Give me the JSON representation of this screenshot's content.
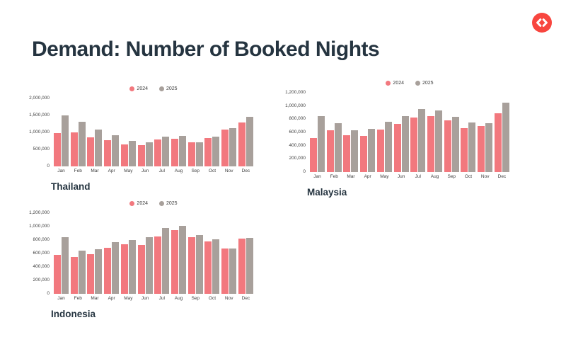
{
  "page": {
    "title": "Demand: Number of Booked Nights"
  },
  "logo": {
    "icon": "code-brackets-icon",
    "background_color": "#f8463f",
    "glyph_color": "#ffffff"
  },
  "colors": {
    "series_2024": "#f2787e",
    "series_2025": "#a8a09b",
    "heading": "#253440",
    "axis_text": "#3d3d3d"
  },
  "chart_data": [
    {
      "type": "bar",
      "title": "Thailand",
      "legend_position": "top",
      "grid": false,
      "categories": [
        "Jan",
        "Feb",
        "Mar",
        "Apr",
        "May",
        "Jun",
        "Jul",
        "Aug",
        "Sep",
        "Oct",
        "Nov",
        "Dec"
      ],
      "series": [
        {
          "name": "2024",
          "color": "#f2787e",
          "values": [
            980000,
            1000000,
            850000,
            780000,
            640000,
            620000,
            800000,
            820000,
            700000,
            830000,
            1080000,
            1300000
          ]
        },
        {
          "name": "2025",
          "color": "#a8a09b",
          "values": [
            1500000,
            1310000,
            1080000,
            920000,
            740000,
            700000,
            880000,
            890000,
            715000,
            870000,
            1130000,
            1460000
          ]
        }
      ],
      "ylim": [
        0,
        2000000
      ],
      "yticks": [
        0,
        500000,
        1000000,
        1500000,
        2000000
      ],
      "ytick_labels": [
        "0",
        "500,000",
        "1,000,000",
        "1,500,000",
        "2,000,000"
      ]
    },
    {
      "type": "bar",
      "title": "Malaysia",
      "legend_position": "top",
      "grid": false,
      "categories": [
        "Jan",
        "Feb",
        "Mar",
        "Apr",
        "May",
        "Jun",
        "Jul",
        "Aug",
        "Sep",
        "Oct",
        "Nov",
        "Dec"
      ],
      "series": [
        {
          "name": "2024",
          "color": "#f2787e",
          "values": [
            510000,
            635000,
            560000,
            550000,
            645000,
            730000,
            820000,
            845000,
            780000,
            660000,
            700000,
            890000
          ]
        },
        {
          "name": "2025",
          "color": "#a8a09b",
          "values": [
            850000,
            735000,
            630000,
            655000,
            760000,
            845000,
            950000,
            935000,
            835000,
            755000,
            740000,
            1050000
          ]
        }
      ],
      "ylim": [
        0,
        1200000
      ],
      "yticks": [
        0,
        200000,
        400000,
        600000,
        800000,
        1000000,
        1200000
      ],
      "ytick_labels": [
        "0",
        "200,000",
        "400,000",
        "600,000",
        "800,000",
        "1,000,000",
        "1,200,000"
      ]
    },
    {
      "type": "bar",
      "title": "Indonesia",
      "legend_position": "top",
      "grid": false,
      "categories": [
        "Jan",
        "Feb",
        "Mar",
        "Apr",
        "May",
        "Jun",
        "Jul",
        "Aug",
        "Sep",
        "Oct",
        "Nov",
        "Dec"
      ],
      "series": [
        {
          "name": "2024",
          "color": "#f2787e",
          "values": [
            580000,
            550000,
            590000,
            685000,
            735000,
            730000,
            850000,
            945000,
            840000,
            780000,
            670000,
            825000
          ]
        },
        {
          "name": "2025",
          "color": "#a8a09b",
          "values": [
            840000,
            640000,
            660000,
            770000,
            800000,
            840000,
            975000,
            1010000,
            870000,
            815000,
            675000,
            830000
          ]
        }
      ],
      "ylim": [
        0,
        1200000
      ],
      "yticks": [
        0,
        200000,
        400000,
        600000,
        800000,
        1000000,
        1200000
      ],
      "ytick_labels": [
        "0",
        "200,000",
        "400,000",
        "600,000",
        "800,000",
        "1,000,000",
        "1,200,000"
      ]
    }
  ]
}
